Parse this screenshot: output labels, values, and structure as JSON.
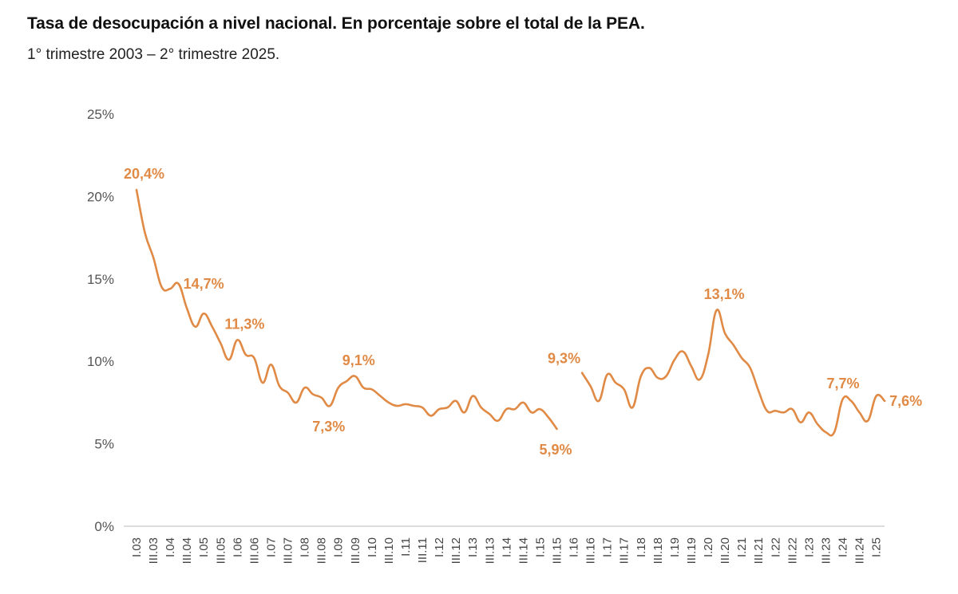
{
  "chart_data": {
    "type": "line",
    "title": "Tasa de desocupación a nivel nacional. En porcentaje sobre el total de la PEA.",
    "subtitle": "1° trimestre 2003 – 2° trimestre 2025.",
    "xlabel": "",
    "ylabel": "",
    "ylim": [
      0,
      25
    ],
    "yticks": [
      "0%",
      "5%",
      "10%",
      "15%",
      "20%",
      "25%"
    ],
    "grid": false,
    "color": "#e08a45",
    "xtick_labels": [
      "I.03",
      "III.03",
      "I.04",
      "III.04",
      "I.05",
      "III.05",
      "I.06",
      "III.06",
      "I.07",
      "III.07",
      "I.08",
      "III.08",
      "I.09",
      "III.09",
      "I.10",
      "III.10",
      "I.11",
      "III.11",
      "I.12",
      "III.12",
      "I.13",
      "III.13",
      "I.14",
      "III.14",
      "I.15",
      "III.15",
      "I.16",
      "III.16",
      "I.17",
      "III.17",
      "I.18",
      "III.18",
      "I.19",
      "III.19",
      "I.20",
      "III.20",
      "I.21",
      "III.21",
      "I.22",
      "III.22",
      "I.23",
      "III.23",
      "I.24",
      "III.24",
      "I.25"
    ],
    "series": [
      {
        "values": [
          20.4,
          17.8,
          16.3,
          14.5,
          14.4,
          14.7,
          13.2,
          12.1,
          12.9,
          12.1,
          11.1,
          10.1,
          11.3,
          10.4,
          10.2,
          8.7,
          9.8,
          8.5,
          8.1,
          7.5,
          8.4,
          8.0,
          7.8,
          7.3,
          8.4,
          8.8,
          9.1,
          8.4,
          8.3,
          7.9,
          7.5,
          7.3,
          7.4,
          7.3,
          7.2,
          6.7,
          7.1,
          7.2,
          7.6,
          6.9,
          7.9,
          7.2,
          6.8,
          6.4,
          7.1,
          7.1,
          7.5,
          6.9,
          7.1,
          6.6,
          5.9,
          null,
          null,
          9.3,
          8.5,
          7.6,
          9.2,
          8.7,
          8.3,
          7.2,
          9.1,
          9.6,
          9.0,
          9.1,
          10.1,
          10.6,
          9.7,
          8.9,
          10.4,
          13.1,
          11.7,
          11.0,
          10.2,
          9.6,
          8.2,
          7.0,
          7.0,
          6.9,
          7.1,
          6.3,
          6.9,
          6.2,
          5.7,
          5.7,
          7.7,
          7.6,
          6.9,
          6.4,
          7.9,
          7.6
        ]
      }
    ],
    "data_labels": [
      {
        "index": 0,
        "text": "20,4%",
        "position": "above-right"
      },
      {
        "index": 5,
        "text": "14,7%",
        "position": "right"
      },
      {
        "index": 12,
        "text": "11,3%",
        "position": "above-right"
      },
      {
        "index": 23,
        "text": "7,3%",
        "position": "below"
      },
      {
        "index": 26,
        "text": "9,1%",
        "position": "above-right"
      },
      {
        "index": 50,
        "text": "5,9%",
        "position": "below"
      },
      {
        "index": 53,
        "text": "9,3%",
        "position": "above-left"
      },
      {
        "index": 69,
        "text": "13,1%",
        "position": "above-right"
      },
      {
        "index": 84,
        "text": "7,7%",
        "position": "above"
      },
      {
        "index": 89,
        "text": "7,6%",
        "position": "right"
      }
    ]
  }
}
